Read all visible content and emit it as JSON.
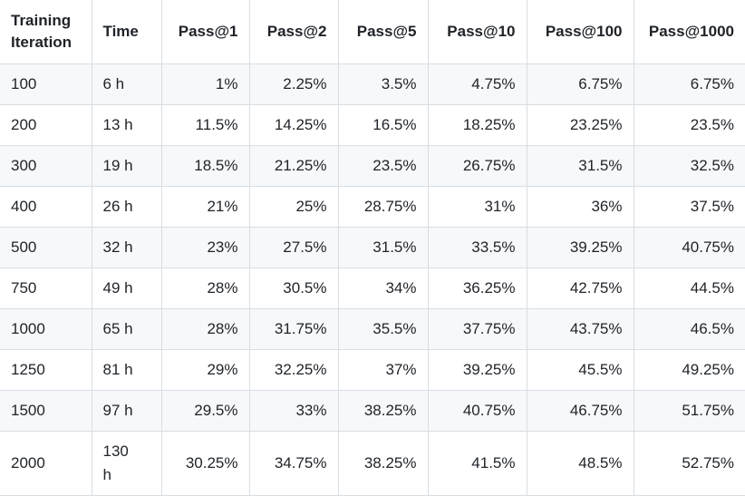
{
  "table": {
    "header": [
      "Training Iteration",
      "Time",
      "Pass@1",
      "Pass@2",
      "Pass@5",
      "Pass@10",
      "Pass@100",
      "Pass@1000"
    ],
    "rows": [
      [
        "100",
        "6 h",
        "1%",
        "2.25%",
        "3.5%",
        "4.75%",
        "6.75%",
        "6.75%"
      ],
      [
        "200",
        "13 h",
        "11.5%",
        "14.25%",
        "16.5%",
        "18.25%",
        "23.25%",
        "23.5%"
      ],
      [
        "300",
        "19 h",
        "18.5%",
        "21.25%",
        "23.5%",
        "26.75%",
        "31.5%",
        "32.5%"
      ],
      [
        "400",
        "26 h",
        "21%",
        "25%",
        "28.75%",
        "31%",
        "36%",
        "37.5%"
      ],
      [
        "500",
        "32 h",
        "23%",
        "27.5%",
        "31.5%",
        "33.5%",
        "39.25%",
        "40.75%"
      ],
      [
        "750",
        "49 h",
        "28%",
        "30.5%",
        "34%",
        "36.25%",
        "42.75%",
        "44.5%"
      ],
      [
        "1000",
        "65 h",
        "28%",
        "31.75%",
        "35.5%",
        "37.75%",
        "43.75%",
        "46.5%"
      ],
      [
        "1250",
        "81 h",
        "29%",
        "32.25%",
        "37%",
        "39.25%",
        "45.5%",
        "49.25%"
      ],
      [
        "1500",
        "97 h",
        "29.5%",
        "33%",
        "38.25%",
        "40.75%",
        "46.75%",
        "51.75%"
      ],
      [
        "2000",
        "130 h",
        "30.25%",
        "34.75%",
        "38.25%",
        "41.5%",
        "48.5%",
        "52.75%"
      ]
    ]
  }
}
